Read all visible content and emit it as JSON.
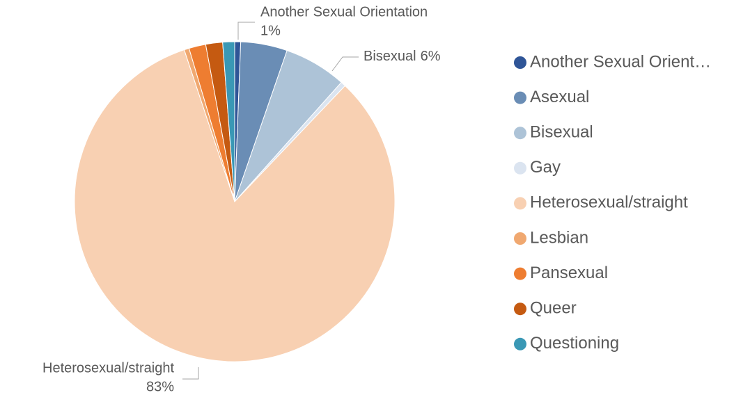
{
  "chart_data": {
    "type": "pie",
    "categories": [
      "Another Sexual Orientation",
      "Asexual",
      "Bisexual",
      "Gay",
      "Heterosexual/straight",
      "Lesbian",
      "Pansexual",
      "Queer",
      "Questioning"
    ],
    "legend_labels": [
      "Another Sexual Orient…",
      "Asexual",
      "Bisexual",
      "Gay",
      "Heterosexual/straight",
      "Lesbian",
      "Pansexual",
      "Queer",
      "Questioning"
    ],
    "values": [
      0.6,
      4.7,
      6.3,
      0.5,
      82.8,
      0.5,
      1.7,
      1.7,
      1.2
    ],
    "value_labels": [
      "1%",
      null,
      "6%",
      null,
      "83%",
      null,
      null,
      null,
      null
    ],
    "colors": [
      "#2f5597",
      "#6a8db5",
      "#adc3d7",
      "#dbe4f0",
      "#f8d0b2",
      "#f0a870",
      "#ee7d31",
      "#c55a11",
      "#3a98b5"
    ],
    "legend": "right"
  }
}
